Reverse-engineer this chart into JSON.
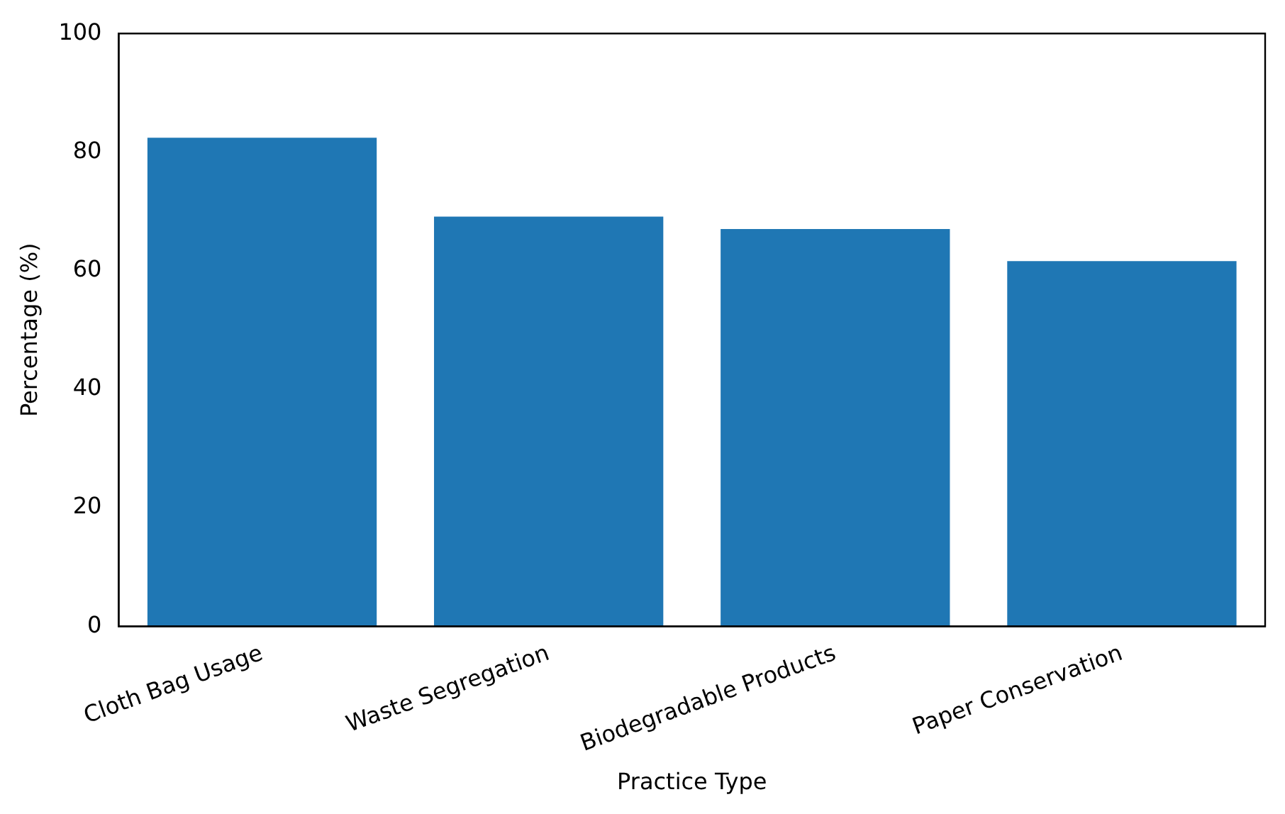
{
  "chart_data": {
    "type": "bar",
    "xlabel": "Practice Type",
    "ylabel": "Percentage (%)",
    "categories": [
      "Cloth Bag Usage",
      "Waste Segregation",
      "Biodegradable Products",
      "Paper Conservation"
    ],
    "values": [
      82.4,
      69.1,
      67.0,
      61.6
    ],
    "color": "#1f77b4",
    "ylim": [
      0,
      100
    ],
    "yticks": [
      0,
      20,
      40,
      60,
      80,
      100
    ],
    "grid": false,
    "legend": false
  }
}
